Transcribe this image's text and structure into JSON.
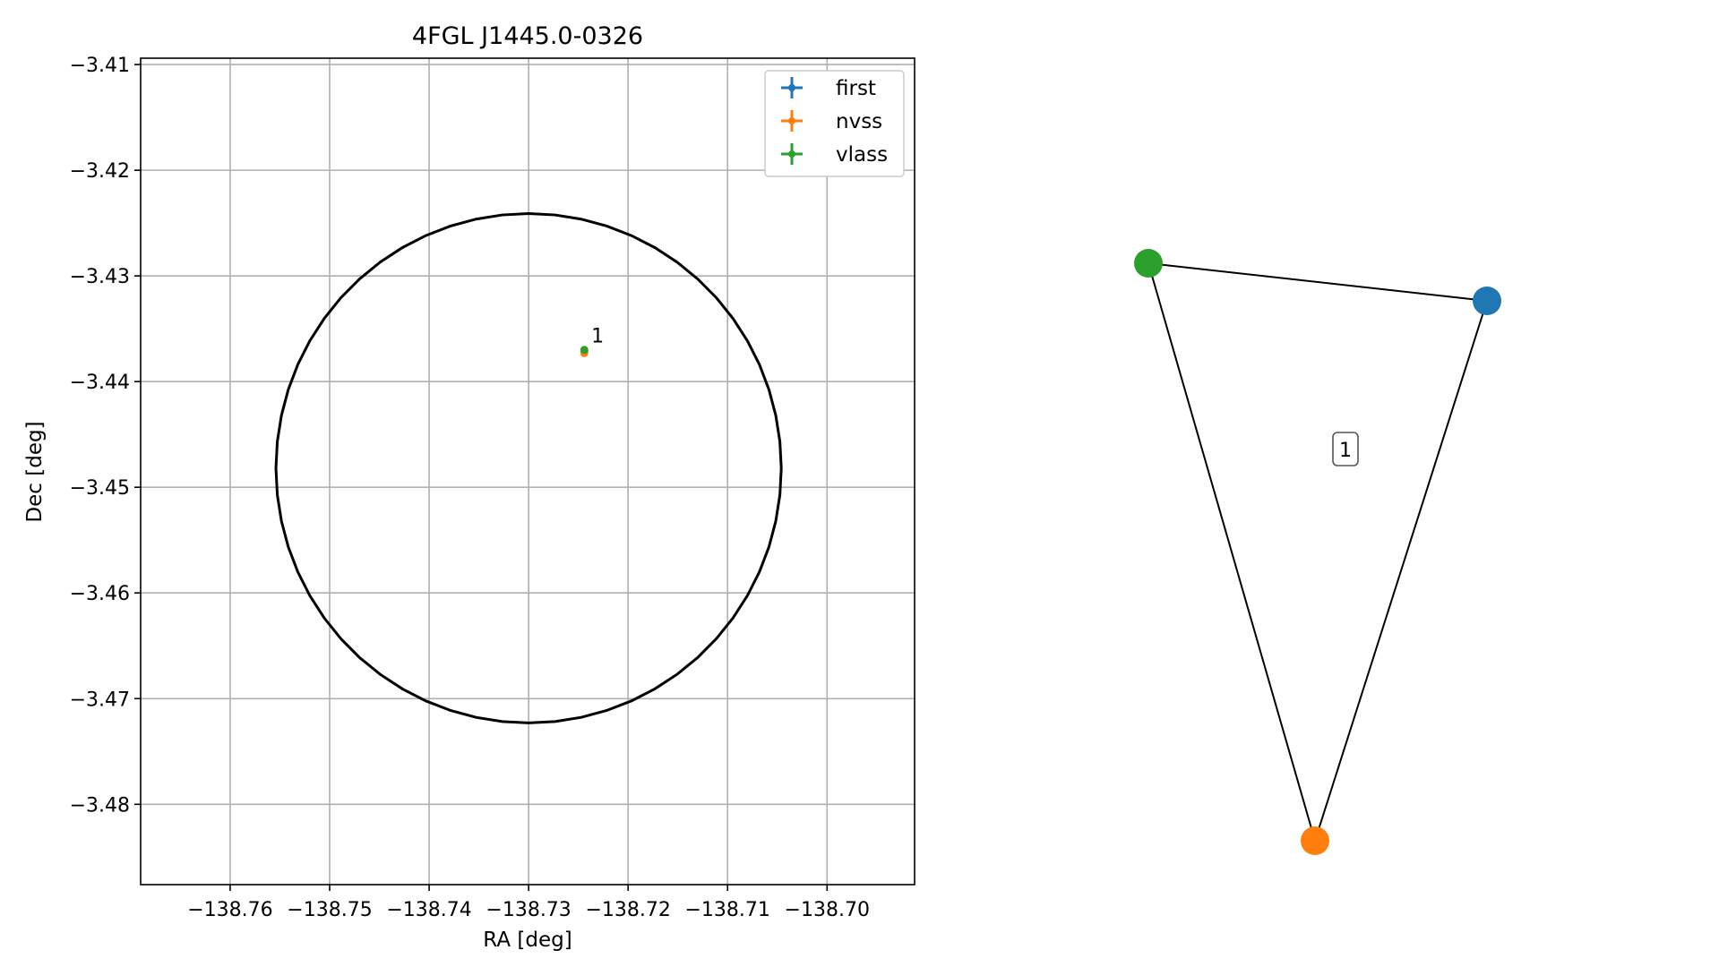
{
  "chart_data": [
    {
      "type": "scatter",
      "title": "4FGL J1445.0-0326",
      "xlabel": "RA [deg]",
      "ylabel": "Dec [deg]",
      "xlim": [
        -138.769,
        -138.6912
      ],
      "ylim": [
        -3.4876,
        -3.4094
      ],
      "xticks": [
        -138.76,
        -138.75,
        -138.74,
        -138.73,
        -138.72,
        -138.71,
        -138.7
      ],
      "xtick_labels": [
        "−138.76",
        "−138.75",
        "−138.74",
        "−138.73",
        "−138.72",
        "−138.71",
        "−138.70"
      ],
      "yticks": [
        -3.41,
        -3.42,
        -3.43,
        -3.44,
        -3.45,
        -3.46,
        -3.47,
        -3.48
      ],
      "ytick_labels": [
        "−3.41",
        "−3.42",
        "−3.43",
        "−3.44",
        "−3.45",
        "−3.46",
        "−3.47",
        "−3.48"
      ],
      "grid": true,
      "legend_position": "top-right",
      "series": [
        {
          "name": "first",
          "color": "#1f77b4",
          "points": [
            {
              "x": -138.7244,
              "y": -3.4371
            }
          ]
        },
        {
          "name": "nvss",
          "color": "#ff7f0e",
          "points": [
            {
              "x": -138.7244,
              "y": -3.4373
            }
          ]
        },
        {
          "name": "vlass",
          "color": "#2ca02c",
          "points": [
            {
              "x": -138.7244,
              "y": -3.437
            }
          ]
        }
      ],
      "annotations": [
        {
          "text": "1",
          "x": -138.7237,
          "y": -3.4363
        }
      ],
      "region": {
        "shape": "circle",
        "color": "#000000",
        "center": {
          "x": -138.73,
          "y": -3.4482
        },
        "radius_x": 0.0254,
        "radius_y": 0.0241
      }
    },
    {
      "type": "graph",
      "nodes": [
        {
          "id": "vlass",
          "color": "#2ca02c"
        },
        {
          "id": "first",
          "color": "#1f77b4"
        },
        {
          "id": "nvss",
          "color": "#ff7f0e"
        }
      ],
      "edges": [
        [
          "vlass",
          "first"
        ],
        [
          "vlass",
          "nvss"
        ],
        [
          "first",
          "nvss"
        ]
      ],
      "label": "1"
    }
  ]
}
